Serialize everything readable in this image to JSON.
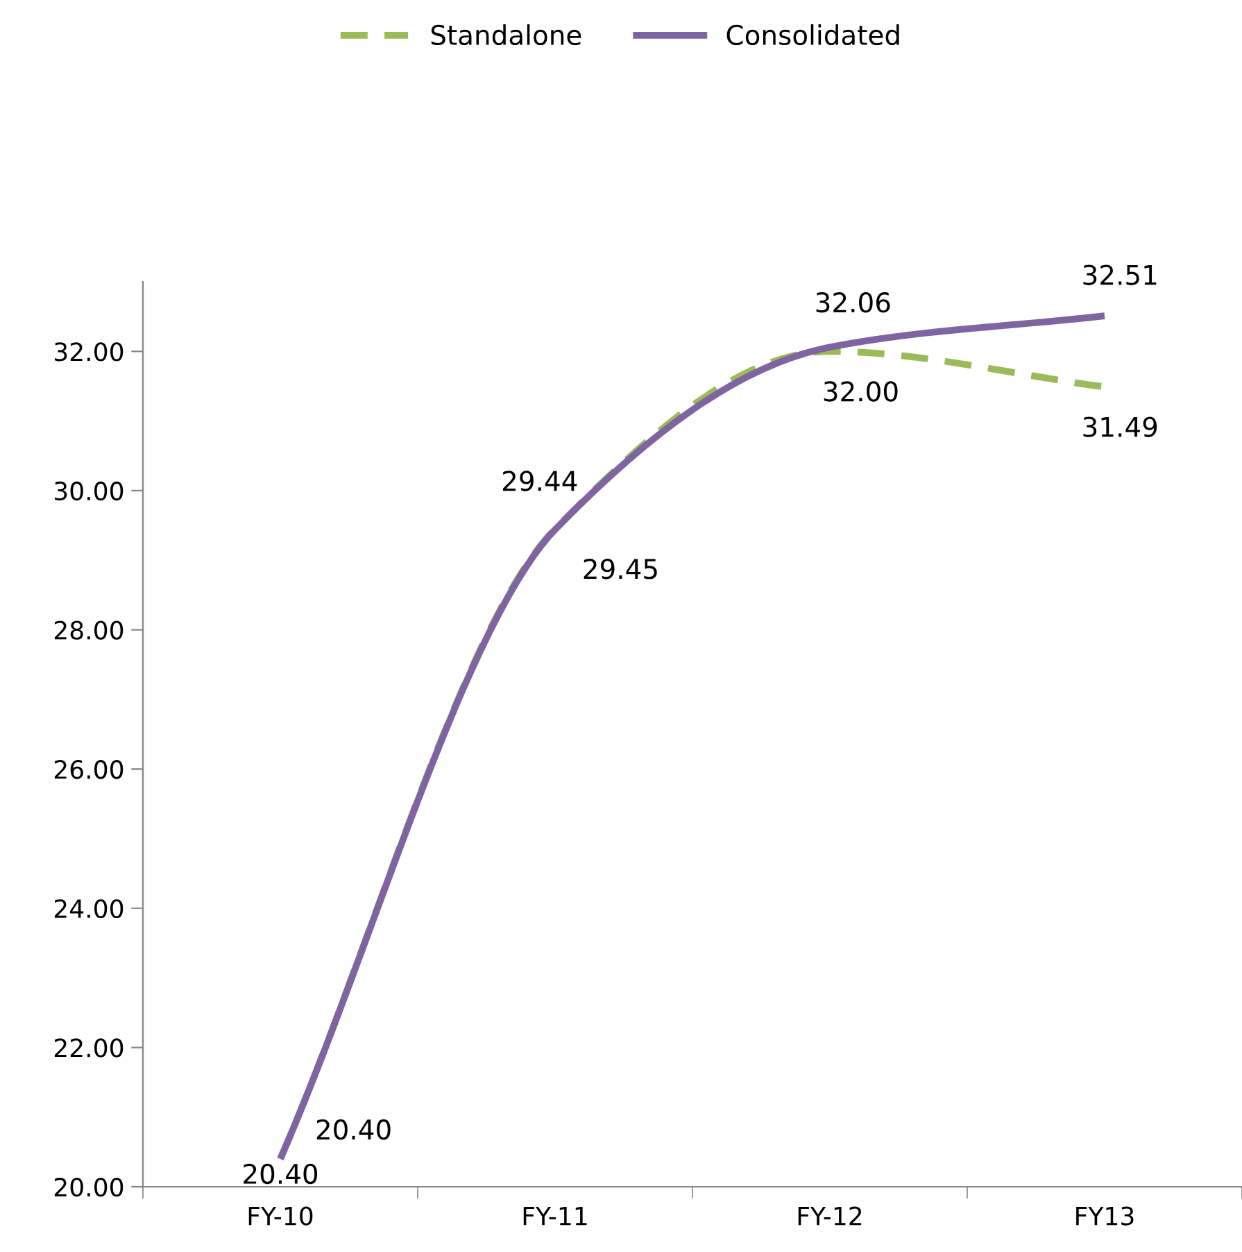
{
  "chart_data": {
    "type": "line",
    "categories": [
      "FY-10",
      "FY-11",
      "FY-12",
      "FY13"
    ],
    "series": [
      {
        "name": "Standalone",
        "color": "#9bbb59",
        "line_style": "dashed",
        "values": [
          20.4,
          29.45,
          32.0,
          31.49
        ],
        "value_labels": [
          "20.40",
          "29.45",
          "32.00",
          "31.49"
        ]
      },
      {
        "name": "Consolidated",
        "color": "#8064a2",
        "line_style": "solid",
        "values": [
          20.4,
          29.44,
          32.06,
          32.51
        ],
        "value_labels": [
          "20.40",
          "29.44",
          "32.06",
          "32.51"
        ]
      }
    ],
    "ylim": [
      20,
      33
    ],
    "yticks": [
      {
        "value": 20,
        "label": "20.00"
      },
      {
        "value": 22,
        "label": "22.00"
      },
      {
        "value": 24,
        "label": "24.00"
      },
      {
        "value": 26,
        "label": "26.00"
      },
      {
        "value": 28,
        "label": "28.00"
      },
      {
        "value": 30,
        "label": "30.00"
      },
      {
        "value": 32,
        "label": "32.00"
      }
    ],
    "legend": "top",
    "grid": false,
    "marker": "none"
  }
}
